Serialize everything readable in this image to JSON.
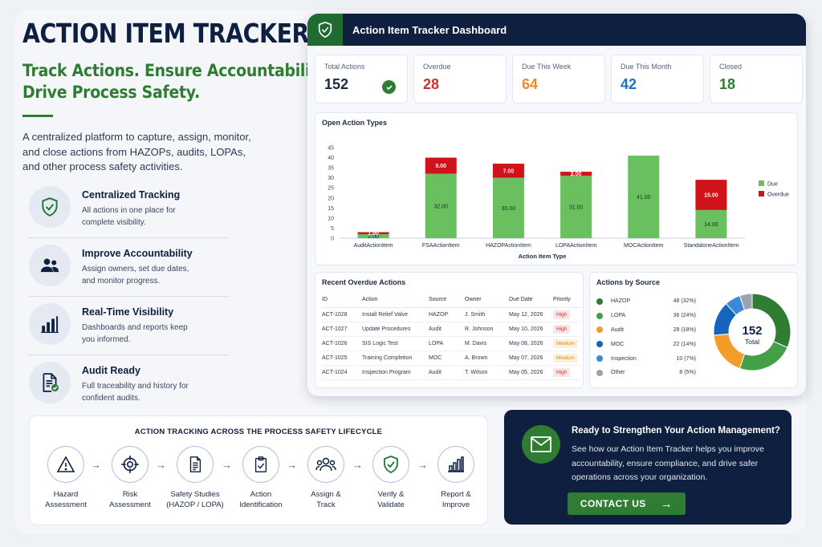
{
  "hero": {
    "title": "ACTION ITEM TRACKER",
    "tagline_1": "Track Actions. Ensure Accountability.",
    "tagline_2": "Drive Process Safety.",
    "description": "A centralized platform to capture, assign, monitor, and close actions from HAZOPs, audits, LOPAs, and other process safety activities."
  },
  "features": [
    {
      "icon": "shield-check-icon",
      "title": "Centralized Tracking",
      "desc": "All actions in one place for complete visibility."
    },
    {
      "icon": "users-icon",
      "title": "Improve Accountability",
      "desc": "Assign owners, set due dates, and monitor progress."
    },
    {
      "icon": "bar-chart-icon",
      "title": "Real-Time Visibility",
      "desc": "Dashboards and reports keep you informed."
    },
    {
      "icon": "document-check-icon",
      "title": "Audit Ready",
      "desc": "Full traceability and history for confident audits."
    }
  ],
  "dashboard": {
    "title": "Action Item Tracker Dashboard",
    "kpis": [
      {
        "label": "Total Actions",
        "value": "152",
        "color": "#1c2a44"
      },
      {
        "label": "Overdue",
        "value": "28",
        "color": "#d32f2f"
      },
      {
        "label": "Due This Week",
        "value": "64",
        "color": "#f0892a"
      },
      {
        "label": "Due This Month",
        "value": "42",
        "color": "#1e6fc6"
      },
      {
        "label": "Closed",
        "value": "18",
        "color": "#2e7d32"
      }
    ],
    "chart_title": "Open Action Types",
    "overdue_title": "Recent Overdue Actions",
    "overdue_headers": [
      "ID",
      "Action",
      "Source",
      "Owner",
      "Due Date",
      "Priority"
    ],
    "overdue_rows": [
      [
        "ACT-1028",
        "Install Relief Valve",
        "HAZOP",
        "J. Smith",
        "May 12, 2026",
        "High"
      ],
      [
        "ACT-1027",
        "Update Procedures",
        "Audit",
        "R. Johnson",
        "May 10, 2026",
        "High"
      ],
      [
        "ACT-1026",
        "SIS Logic Test",
        "LOPA",
        "M. Davis",
        "May 08, 2026",
        "Medium"
      ],
      [
        "ACT-1025",
        "Training Completion",
        "MOC",
        "A. Brown",
        "May 07, 2026",
        "Medium"
      ],
      [
        "ACT-1024",
        "Inspection Program",
        "Audit",
        "T. Wilson",
        "May 05, 2026",
        "High"
      ]
    ],
    "source_title": "Actions by Source",
    "sources": [
      {
        "name": "HAZOP",
        "value": "48 (32%)",
        "count": 48,
        "color": "#2e7d32"
      },
      {
        "name": "LOPA",
        "value": "36 (24%)",
        "count": 36,
        "color": "#43a047"
      },
      {
        "name": "Audit",
        "value": "28 (18%)",
        "count": 28,
        "color": "#f39c27"
      },
      {
        "name": "MOC",
        "value": "22 (14%)",
        "count": 22,
        "color": "#1565c0"
      },
      {
        "name": "Inspection",
        "value": "10 (7%)",
        "count": 10,
        "color": "#3a88d6"
      },
      {
        "name": "Other",
        "value": "8 (5%)",
        "count": 8,
        "color": "#9aa3b0"
      }
    ],
    "donut_value": "152",
    "donut_label": "Total"
  },
  "chart_data": {
    "type": "bar",
    "stacked": true,
    "categories": [
      "AuditActionItem",
      "FSAActionItem",
      "HAZOPActionItem",
      "LOPAActionItem",
      "MOCActionItem",
      "StandaloneActionItem"
    ],
    "series": [
      {
        "name": "Due",
        "values": [
          2,
          32,
          30,
          31,
          41,
          14
        ],
        "color": "#6abf5e"
      },
      {
        "name": "Overdue",
        "values": [
          1,
          8,
          7,
          2,
          0,
          15
        ],
        "color": "#d0121b"
      }
    ],
    "xlabel": "Action Item Type",
    "ylabel": "",
    "ylim": [
      0,
      45
    ],
    "yticks": [
      0,
      5,
      10,
      15,
      20,
      25,
      30,
      35,
      40,
      45
    ],
    "grid": false,
    "legend": "right"
  },
  "lifecycle": {
    "title": "ACTION TRACKING ACROSS THE PROCESS SAFETY LIFECYCLE",
    "steps": [
      {
        "icon": "warning-icon",
        "line1": "Hazard",
        "line2": "Assessment"
      },
      {
        "icon": "target-icon",
        "line1": "Risk",
        "line2": "Assessment"
      },
      {
        "icon": "document-icon",
        "line1": "Safety Studies",
        "line2": "(HAZOP / LOPA)"
      },
      {
        "icon": "clipboard-check-icon",
        "line1": "Action",
        "line2": "Identification"
      },
      {
        "icon": "team-icon",
        "line1": "Assign &",
        "line2": "Track"
      },
      {
        "icon": "shield-check-icon",
        "line1": "Verify &",
        "line2": "Validate"
      },
      {
        "icon": "bar-chart-icon",
        "line1": "Report &",
        "line2": "Improve"
      }
    ]
  },
  "cta": {
    "title": "Ready to Strengthen Your Action Management?",
    "description": "See how our Action Item Tracker helps you improve accountability, ensure compliance, and drive safer operations across your organization.",
    "button": "CONTACT US"
  }
}
